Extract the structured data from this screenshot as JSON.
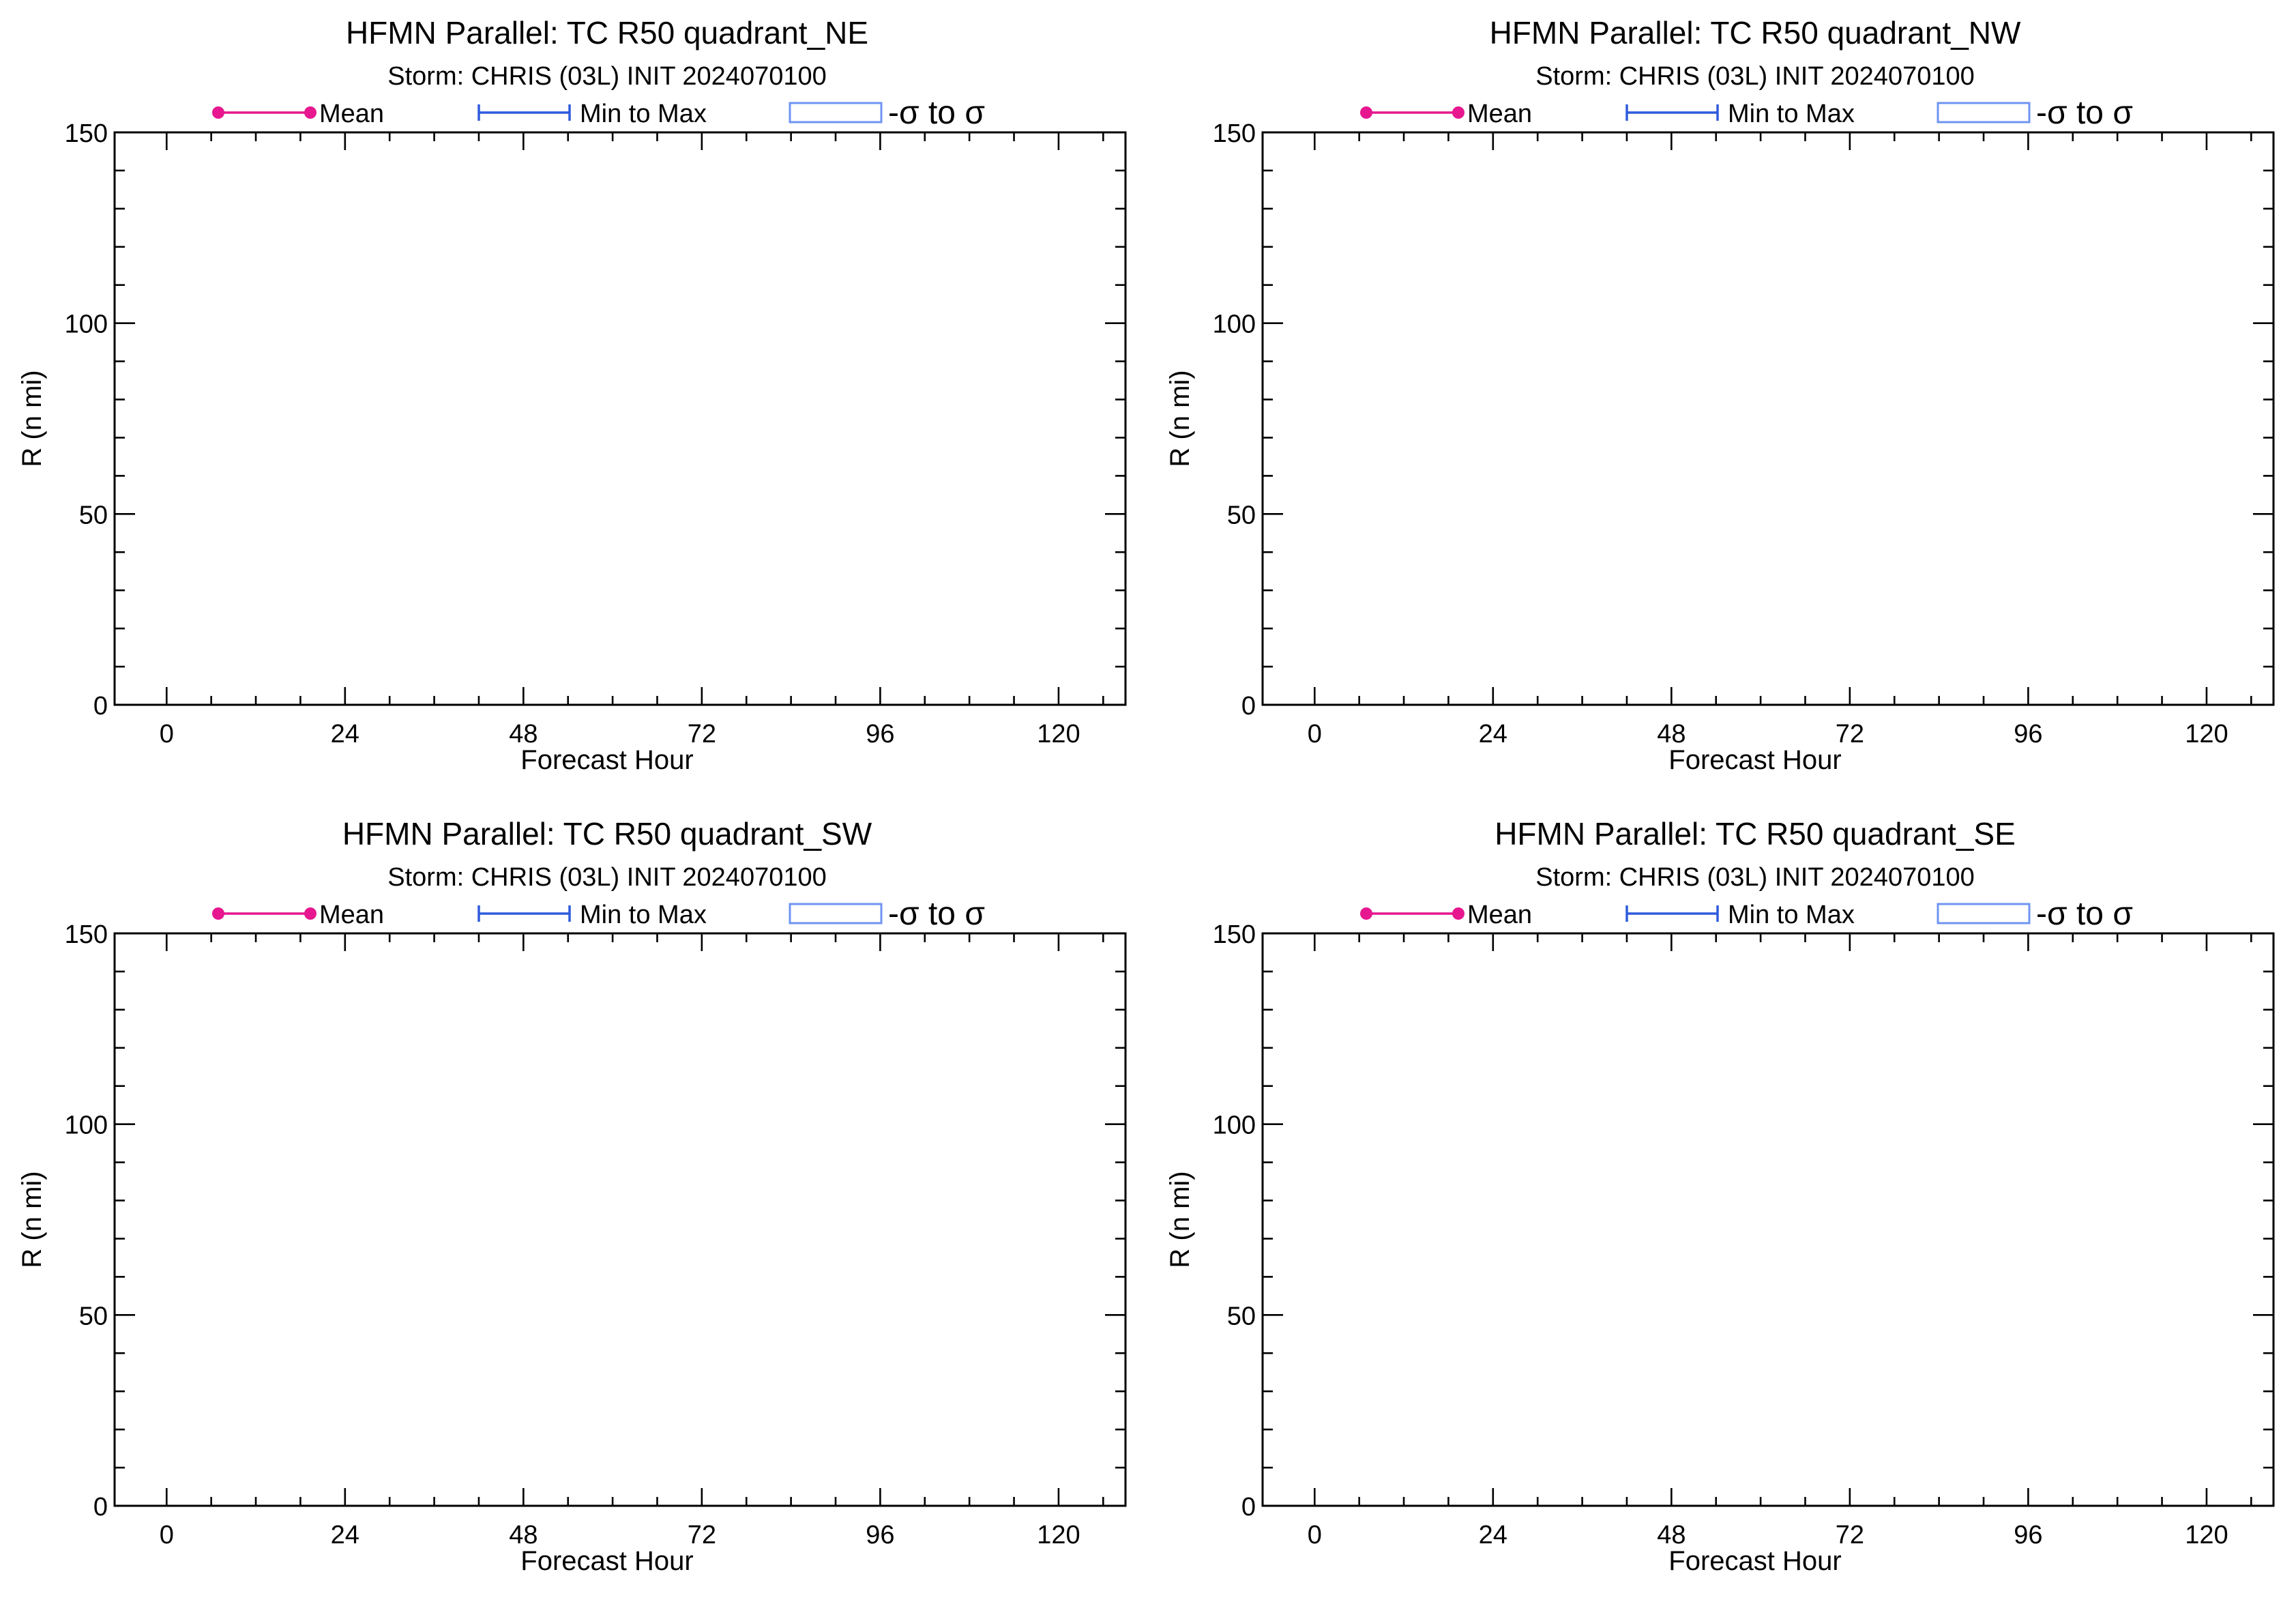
{
  "figure": {
    "colors": {
      "mean": "#e6178f",
      "minmax": "#2f5bdc",
      "sigma": "#6f95f2",
      "axes": "#000000",
      "background": "#ffffff"
    }
  },
  "chart_data": [
    {
      "type": "line",
      "title": "HFMN Parallel: TC  R50 quadrant_NE",
      "subtitle": "Storm: CHRIS (03L) INIT 2024070100",
      "xlabel": "Forecast Hour",
      "ylabel": "R (n mi)",
      "xlim": [
        -7,
        129
      ],
      "ylim": [
        0,
        150
      ],
      "xticks": [
        "0",
        "24",
        "48",
        "72",
        "96",
        "120"
      ],
      "yticks": [
        "0",
        "50",
        "100",
        "150"
      ],
      "legend": {
        "placement": "top",
        "mean_label": "Mean",
        "minmax_label": "Min to Max",
        "sigma_label": "-σ to σ"
      },
      "grid": false,
      "series": []
    },
    {
      "type": "line",
      "title": "HFMN Parallel: TC  R50 quadrant_NW",
      "subtitle": "Storm: CHRIS (03L) INIT 2024070100",
      "xlabel": "Forecast Hour",
      "ylabel": "R (n mi)",
      "xlim": [
        -7,
        129
      ],
      "ylim": [
        0,
        150
      ],
      "xticks": [
        "0",
        "24",
        "48",
        "72",
        "96",
        "120"
      ],
      "yticks": [
        "0",
        "50",
        "100",
        "150"
      ],
      "legend": {
        "placement": "top",
        "mean_label": "Mean",
        "minmax_label": "Min to Max",
        "sigma_label": "-σ to σ"
      },
      "grid": false,
      "series": []
    },
    {
      "type": "line",
      "title": "HFMN Parallel: TC  R50 quadrant_SW",
      "subtitle": "Storm: CHRIS (03L) INIT 2024070100",
      "xlabel": "Forecast Hour",
      "ylabel": "R (n mi)",
      "xlim": [
        -7,
        129
      ],
      "ylim": [
        0,
        150
      ],
      "xticks": [
        "0",
        "24",
        "48",
        "72",
        "96",
        "120"
      ],
      "yticks": [
        "0",
        "50",
        "100",
        "150"
      ],
      "legend": {
        "placement": "top",
        "mean_label": "Mean",
        "minmax_label": "Min to Max",
        "sigma_label": "-σ to σ"
      },
      "grid": false,
      "series": []
    },
    {
      "type": "line",
      "title": "HFMN Parallel: TC  R50 quadrant_SE",
      "subtitle": "Storm: CHRIS (03L) INIT 2024070100",
      "xlabel": "Forecast Hour",
      "ylabel": "R (n mi)",
      "xlim": [
        -7,
        129
      ],
      "ylim": [
        0,
        150
      ],
      "xticks": [
        "0",
        "24",
        "48",
        "72",
        "96",
        "120"
      ],
      "yticks": [
        "0",
        "50",
        "100",
        "150"
      ],
      "legend": {
        "placement": "top",
        "mean_label": "Mean",
        "minmax_label": "Min to Max",
        "sigma_label": "-σ to σ"
      },
      "grid": false,
      "series": []
    }
  ]
}
